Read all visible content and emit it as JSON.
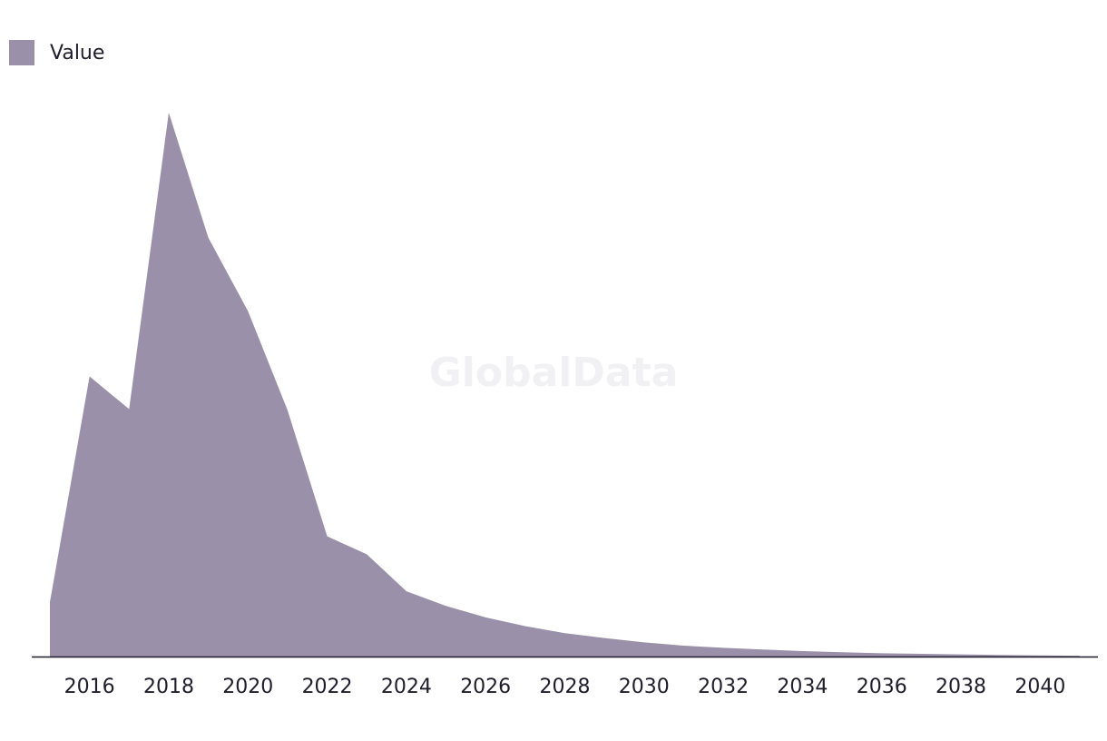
{
  "legend": {
    "label": "Value"
  },
  "watermark": "GlobalData",
  "colors": {
    "area": "#9a90a9",
    "axis": "#1f1d2b",
    "text": "#1f1d2b"
  },
  "chart_data": {
    "type": "area",
    "title": "",
    "xlabel": "",
    "ylabel": "",
    "legend_position": "top-left",
    "grid": false,
    "y_axis_labels_shown": false,
    "x": [
      2015,
      2016,
      2017,
      2018,
      2019,
      2020,
      2021,
      2022,
      2023,
      2024,
      2025,
      2026,
      2027,
      2028,
      2029,
      2030,
      2031,
      2032,
      2033,
      2034,
      2035,
      2036,
      2037,
      2038,
      2039,
      2040,
      2041
    ],
    "xlim": [
      2015,
      2041
    ],
    "x_ticks": [
      "2016",
      "2018",
      "2020",
      "2022",
      "2024",
      "2026",
      "2028",
      "2030",
      "2032",
      "2034",
      "2036",
      "2038",
      "2040"
    ],
    "ylim": [
      0,
      100
    ],
    "series": [
      {
        "name": "Value",
        "values": [
          10,
          51.5,
          45.5,
          100,
          77,
          63.5,
          45.3,
          22.1,
          18.8,
          12,
          9.3,
          7.2,
          5.6,
          4.3,
          3.4,
          2.6,
          2.0,
          1.6,
          1.3,
          1.0,
          0.8,
          0.6,
          0.5,
          0.4,
          0.3,
          0.2,
          0.15
        ]
      }
    ]
  }
}
